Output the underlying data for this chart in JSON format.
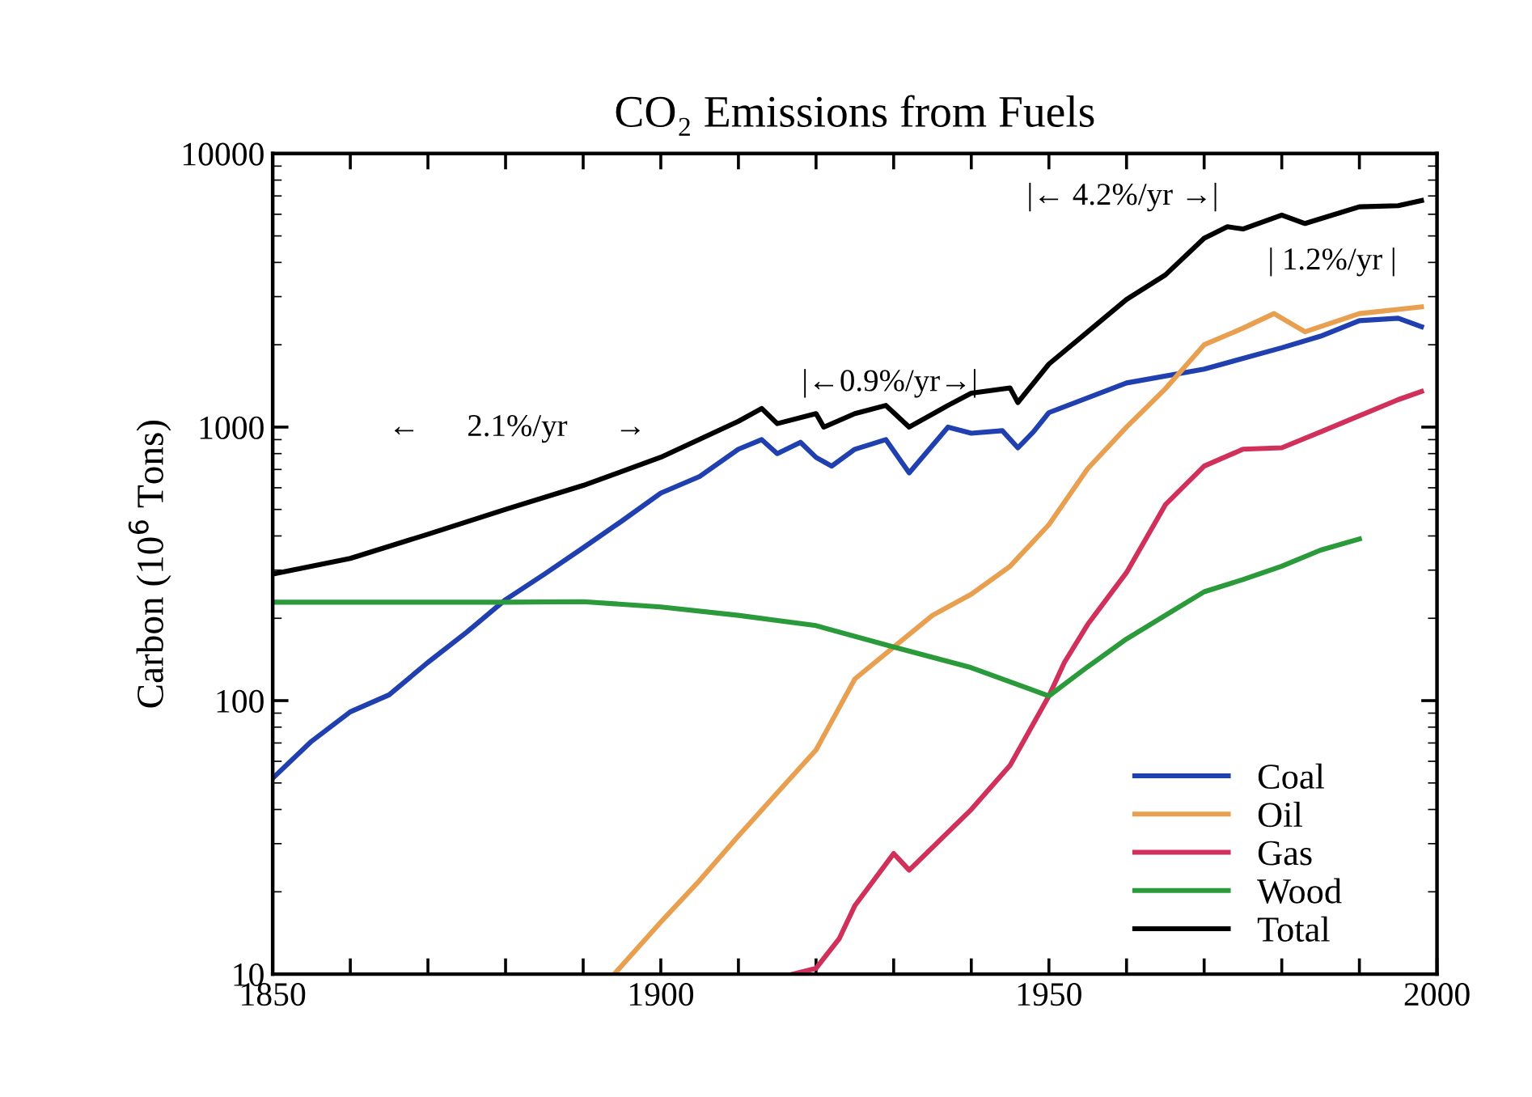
{
  "chart_data": {
    "type": "line",
    "title": "CO₂ Emissions from Fuels",
    "ylabel": "Carbon (10$^{6}$ Tons)",
    "log": "y",
    "grid": false,
    "legend": "bottom right",
    "marker": "none",
    "line_style": "solid",
    "xlim": [
      1850,
      2000
    ],
    "ylim": [
      10,
      10000
    ],
    "xticks": [
      1850,
      {
        "value": 1860,
        "label": null
      },
      {
        "value": 1870,
        "label": null
      },
      {
        "value": 1880,
        "label": null
      },
      {
        "value": 1890,
        "label": null
      },
      1900,
      {
        "value": 1910,
        "label": null
      },
      {
        "value": 1920,
        "label": null
      },
      {
        "value": 1930,
        "label": null
      },
      {
        "value": 1940,
        "label": null
      },
      1950,
      {
        "value": 1960,
        "label": null
      },
      {
        "value": 1970,
        "label": null
      },
      {
        "value": 1980,
        "label": null
      },
      {
        "value": 1990,
        "label": null
      },
      2000
    ],
    "yticks": [
      10,
      100,
      1000,
      10000
    ],
    "series": [
      {
        "name": "Coal",
        "color": "#2040b0",
        "x": [
          1850,
          1855,
          1860,
          1865,
          1870,
          1875,
          1880,
          1885,
          1890,
          1895,
          1900,
          1905,
          1910,
          1913,
          1915,
          1918,
          1920,
          1922,
          1925,
          1929,
          1932,
          1937,
          1940,
          1944,
          1946,
          1948,
          1950,
          1960,
          1970,
          1980,
          1985,
          1990,
          1995,
          1998
        ],
        "values": [
          52,
          71,
          91,
          105,
          138,
          178,
          234,
          290,
          362,
          454,
          574,
          660,
          830,
          900,
          800,
          880,
          775,
          720,
          830,
          900,
          680,
          1000,
          950,
          970,
          840,
          960,
          1130,
          1450,
          1630,
          1950,
          2150,
          2450,
          2500,
          2330
        ]
      },
      {
        "name": "Oil",
        "color": "#e8a050",
        "x": [
          1894,
          1900,
          1905,
          1910,
          1915,
          1920,
          1925,
          1930,
          1935,
          1940,
          1945,
          1950,
          1955,
          1960,
          1965,
          1970,
          1975,
          1979,
          1983,
          1990,
          1998
        ],
        "values": [
          10,
          15.5,
          22,
          32,
          46,
          66,
          120,
          157,
          205,
          245,
          310,
          440,
          705,
          1000,
          1380,
          2000,
          2300,
          2600,
          2230,
          2600,
          2750
        ]
      },
      {
        "name": "Gas",
        "color": "#d0305a",
        "x": [
          1917,
          1920,
          1923,
          1925,
          1930,
          1932,
          1940,
          1945,
          1950,
          1952,
          1955,
          1960,
          1965,
          1970,
          1975,
          1980,
          1985,
          1990,
          1995,
          1998
        ],
        "values": [
          10,
          10.5,
          13.5,
          17.8,
          27.6,
          24,
          40,
          58,
          104,
          138,
          190,
          294,
          520,
          720,
          830,
          840,
          960,
          1100,
          1260,
          1350
        ]
      },
      {
        "name": "Wood",
        "color": "#2a9a3a",
        "x": [
          1850,
          1880,
          1890,
          1900,
          1910,
          1920,
          1930,
          1940,
          1950,
          1955,
          1960,
          1965,
          1970,
          1975,
          1980,
          1985,
          1990
        ],
        "values": [
          229,
          229,
          230,
          220,
          205,
          188,
          157,
          132,
          104,
          133,
          168,
          205,
          250,
          277,
          310,
          355,
          390
        ]
      },
      {
        "name": "Total",
        "color": "#000000",
        "x": [
          1850,
          1860,
          1870,
          1880,
          1890,
          1900,
          1910,
          1913,
          1915,
          1920,
          1921,
          1925,
          1929,
          1932,
          1937,
          1940,
          1945,
          1946,
          1950,
          1955,
          1960,
          1965,
          1970,
          1973,
          1975,
          1980,
          1983,
          1990,
          1995,
          1998
        ],
        "values": [
          290,
          331,
          406,
          500,
          612,
          776,
          1050,
          1170,
          1030,
          1120,
          1000,
          1120,
          1200,
          1000,
          1200,
          1330,
          1390,
          1230,
          1700,
          2230,
          2930,
          3600,
          4900,
          5400,
          5300,
          5960,
          5550,
          6390,
          6450,
          6730
        ]
      }
    ],
    "annotations": [
      "←      2.1%/yr      →",
      "|←0.9%/yr→|",
      "|← 4.2%/yr →|",
      "| 1.2%/yr |"
    ]
  }
}
